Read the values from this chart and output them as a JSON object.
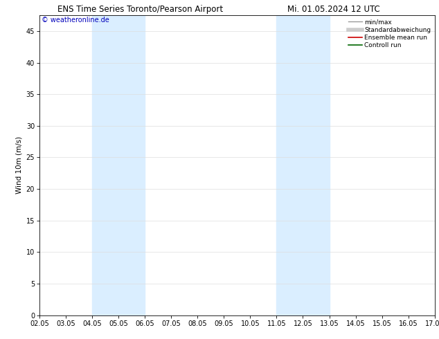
{
  "title_left": "ENS Time Series Toronto/Pearson Airport",
  "title_right": "Mi. 01.05.2024 12 UTC",
  "ylabel": "Wind 10m (m/s)",
  "watermark": "© weatheronline.de",
  "x_tick_labels": [
    "02.05",
    "03.05",
    "04.05",
    "05.05",
    "06.05",
    "07.05",
    "08.05",
    "09.05",
    "10.05",
    "11.05",
    "12.05",
    "13.05",
    "14.05",
    "15.05",
    "16.05",
    "17.05"
  ],
  "x_tick_positions": [
    0,
    1,
    2,
    3,
    4,
    5,
    6,
    7,
    8,
    9,
    10,
    11,
    12,
    13,
    14,
    15
  ],
  "ylim": [
    0,
    47.5
  ],
  "yticks": [
    0,
    5,
    10,
    15,
    20,
    25,
    30,
    35,
    40,
    45
  ],
  "shaded_bands": [
    {
      "x_start": 2,
      "x_end": 4,
      "color": "#daeeff"
    },
    {
      "x_start": 9,
      "x_end": 11,
      "color": "#daeeff"
    }
  ],
  "bg_color": "#ffffff",
  "plot_bg_color": "#ffffff",
  "grid_color": "#dddddd",
  "legend_items": [
    {
      "label": "min/max",
      "color": "#999999",
      "lw": 1.0,
      "style": "-"
    },
    {
      "label": "Standardabweichung",
      "color": "#cccccc",
      "lw": 4,
      "style": "-"
    },
    {
      "label": "Ensemble mean run",
      "color": "#cc0000",
      "lw": 1.2,
      "style": "-"
    },
    {
      "label": "Controll run",
      "color": "#006600",
      "lw": 1.2,
      "style": "-"
    }
  ],
  "watermark_color": "#0000bb",
  "title_fontsize": 8.5,
  "tick_fontsize": 7,
  "ylabel_fontsize": 7.5,
  "legend_fontsize": 6.5,
  "watermark_fontsize": 7
}
